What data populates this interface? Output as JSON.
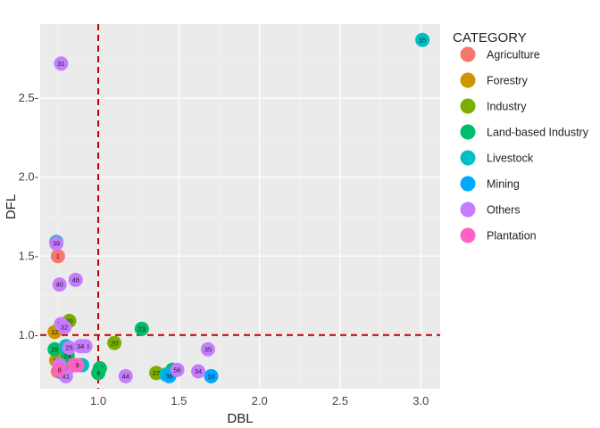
{
  "chart_data": {
    "type": "scatter",
    "title": "",
    "xlabel": "DBL",
    "ylabel": "DFL",
    "xlim": [
      0.64,
      3.12
    ],
    "ylim": [
      0.66,
      2.97
    ],
    "xticks": [
      1.0,
      1.5,
      2.0,
      2.5,
      3.0
    ],
    "xtick_labels": [
      "1.0",
      "1.5",
      "2.0",
      "2.5",
      "3.0"
    ],
    "yticks": [
      1.0,
      1.5,
      2.0,
      2.5
    ],
    "ytick_labels": [
      "1.0-",
      "1.5-",
      "2.0-",
      "2.5-"
    ],
    "grid": true,
    "reference_lines": {
      "x": 1.0,
      "y": 1.0,
      "color": "#c00000",
      "style": "dashed"
    },
    "legend": {
      "title": "CATEGORY",
      "position": "right"
    },
    "series": [
      {
        "name": "Agriculture",
        "color": "#F8766D",
        "points": [
          {
            "label": "1",
            "x": 0.75,
            "y": 1.5
          },
          {
            "label": "3",
            "x": 0.75,
            "y": 0.77
          }
        ]
      },
      {
        "name": "Forestry",
        "color": "#CD9600",
        "points": [
          {
            "label": "12",
            "x": 0.73,
            "y": 1.02
          },
          {
            "label": "13",
            "x": 0.74,
            "y": 0.84
          }
        ]
      },
      {
        "name": "Industry",
        "color": "#7CAE00",
        "points": [
          {
            "label": "30",
            "x": 0.82,
            "y": 1.09
          },
          {
            "label": "20",
            "x": 1.1,
            "y": 0.95
          },
          {
            "label": "27",
            "x": 1.36,
            "y": 0.76
          },
          {
            "label": "14",
            "x": 0.82,
            "y": 0.8
          }
        ]
      },
      {
        "name": "Land-based Industry",
        "color": "#00BE67",
        "points": [
          {
            "label": "23",
            "x": 1.27,
            "y": 1.04
          },
          {
            "label": "29",
            "x": 0.73,
            "y": 0.91
          },
          {
            "label": "24",
            "x": 0.81,
            "y": 0.87
          },
          {
            "label": "26",
            "x": 1.01,
            "y": 0.79
          },
          {
            "label": "4",
            "x": 1.0,
            "y": 0.76
          },
          {
            "label": "5",
            "x": 1.46,
            "y": 0.78
          }
        ]
      },
      {
        "name": "Livestock",
        "color": "#00BFC4",
        "points": [
          {
            "label": "15",
            "x": 3.01,
            "y": 2.87
          },
          {
            "label": "16",
            "x": 0.74,
            "y": 1.59
          },
          {
            "label": "19",
            "x": 0.8,
            "y": 0.93
          },
          {
            "label": "37",
            "x": 1.42,
            "y": 0.75
          },
          {
            "label": "7",
            "x": 0.9,
            "y": 0.81
          }
        ]
      },
      {
        "name": "Mining",
        "color": "#00A9FF",
        "points": [
          {
            "label": "18",
            "x": 1.7,
            "y": 0.74
          },
          {
            "label": "36",
            "x": 1.44,
            "y": 0.74
          },
          {
            "label": "21",
            "x": 0.78,
            "y": 0.76
          }
        ]
      },
      {
        "name": "Others",
        "color": "#C77CFF",
        "points": [
          {
            "label": "31",
            "x": 0.77,
            "y": 2.72
          },
          {
            "label": "39",
            "x": 0.74,
            "y": 1.58
          },
          {
            "label": "46",
            "x": 0.86,
            "y": 1.35
          },
          {
            "label": "40",
            "x": 0.76,
            "y": 1.32
          },
          {
            "label": "38",
            "x": 0.77,
            "y": 1.07
          },
          {
            "label": "32",
            "x": 0.79,
            "y": 1.05
          },
          {
            "label": "35",
            "x": 1.68,
            "y": 0.91
          },
          {
            "label": "33",
            "x": 0.92,
            "y": 0.93
          },
          {
            "label": "34",
            "x": 0.89,
            "y": 0.93
          },
          {
            "label": "25",
            "x": 0.82,
            "y": 0.92
          },
          {
            "label": "44",
            "x": 1.17,
            "y": 0.74
          },
          {
            "label": "56",
            "x": 1.49,
            "y": 0.78
          },
          {
            "label": "34",
            "x": 1.62,
            "y": 0.77
          },
          {
            "label": "41",
            "x": 0.8,
            "y": 0.74
          },
          {
            "label": "2",
            "x": 0.76,
            "y": 0.81
          }
        ]
      },
      {
        "name": "Plantation",
        "color": "#FF61C3",
        "points": [
          {
            "label": "11",
            "x": 0.85,
            "y": 0.81
          },
          {
            "label": "8",
            "x": 0.76,
            "y": 0.78
          },
          {
            "label": "9",
            "x": 0.87,
            "y": 0.81
          }
        ]
      }
    ]
  }
}
